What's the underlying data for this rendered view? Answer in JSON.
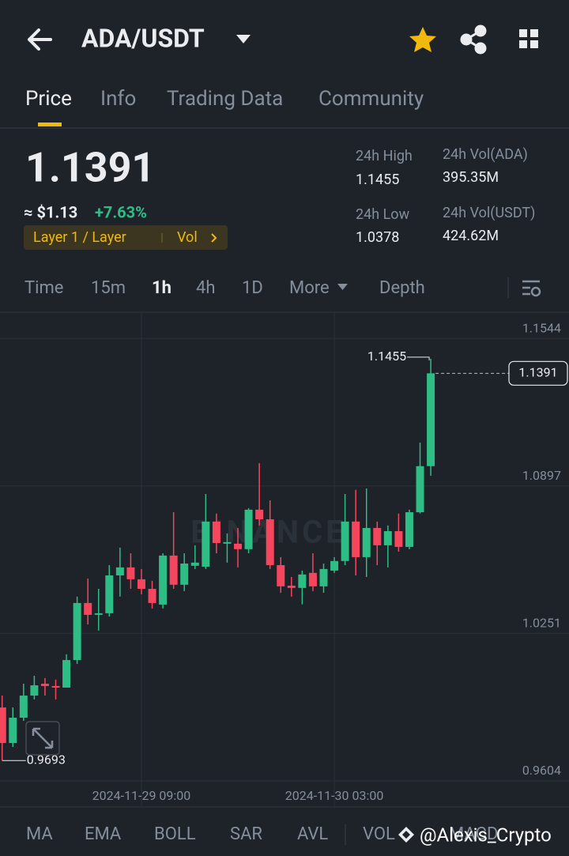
{
  "header": {
    "pair": "ADA/USDT"
  },
  "tabs": [
    "Price",
    "Info",
    "Trading Data",
    "Community"
  ],
  "price": {
    "last": "1.1391",
    "approx": "≈ $1.13",
    "change": "+7.63%",
    "tag": "Layer 1 / Layer",
    "tag_extra": "Vol"
  },
  "stats": [
    {
      "label": "24h High",
      "value": "1.1455"
    },
    {
      "label": "24h Vol(ADA)",
      "value": "395.35M"
    },
    {
      "label": "24h Low",
      "value": "1.0378"
    },
    {
      "label": "24h Vol(USDT)",
      "value": "424.62M"
    }
  ],
  "intervals": [
    "Time",
    "15m",
    "1h",
    "4h",
    "1D",
    "More",
    "Depth"
  ],
  "chart_data": {
    "type": "candlestick",
    "watermark": "BINANCE",
    "open": [
      0.9926,
      0.977,
      0.9881,
      0.9978,
      1.003,
      1.002,
      1.0013,
      1.0134,
      1.0384,
      1.0332,
      1.0339,
      1.0505,
      1.054,
      1.0488,
      1.0446,
      1.0377,
      1.0592,
      1.0464,
      1.0547,
      1.0543,
      1.0741,
      1.0644,
      1.0644,
      1.062,
      1.0793,
      1.0751,
      1.055,
      1.046,
      1.045,
      1.0516,
      1.0457,
      1.0526,
      1.0568,
      1.0741,
      1.0585,
      1.0713,
      1.0637,
      1.0699,
      1.063,
      1.0782,
      1.0984
    ],
    "high": [
      0.9978,
      0.9926,
      1.003,
      1.0065,
      1.0055,
      1.0048,
      1.0159,
      1.0412,
      1.0491,
      1.0446,
      1.055,
      1.0627,
      1.0602,
      1.0533,
      1.0481,
      1.0602,
      1.0782,
      1.0602,
      1.0637,
      1.0862,
      1.0776,
      1.0689,
      1.0713,
      1.08,
      1.0997,
      1.0834,
      1.0585,
      1.0498,
      1.0526,
      1.0602,
      1.0557,
      1.0585,
      1.0862,
      1.088,
      1.0886,
      1.0741,
      1.0724,
      1.0776,
      1.0793,
      1.1087,
      1.1455
    ],
    "low": [
      0.9693,
      0.9753,
      0.9867,
      0.9961,
      0.9978,
      0.9961,
      1.0013,
      1.0117,
      1.029,
      1.0263,
      1.0325,
      1.0412,
      1.0446,
      1.0422,
      1.036,
      1.036,
      1.0446,
      1.0436,
      1.0533,
      1.0533,
      1.0602,
      1.0561,
      1.054,
      1.0602,
      1.0724,
      1.0533,
      1.0429,
      1.0412,
      1.0378,
      1.0436,
      1.0429,
      1.0516,
      1.055,
      1.0505,
      1.0498,
      1.055,
      1.054,
      1.0609,
      1.062,
      1.0776,
      1.0942
    ],
    "close": [
      0.977,
      0.9881,
      0.9978,
      1.0023,
      1.002,
      1.0013,
      1.0134,
      1.0384,
      1.0332,
      1.0339,
      1.0505,
      1.054,
      1.0488,
      1.0446,
      1.0384,
      1.0592,
      1.0464,
      1.0557,
      1.0561,
      1.0741,
      1.0647,
      1.0651,
      1.062,
      1.0793,
      1.0751,
      1.055,
      1.0457,
      1.045,
      1.0509,
      1.0457,
      1.0533,
      1.0568,
      1.0741,
      1.0585,
      1.0713,
      1.0637,
      1.0699,
      1.063,
      1.0782,
      1.0984,
      1.1391
    ],
    "up_color": "#2ebd85",
    "down_color": "#f6465d",
    "xlim": [
      -0.2,
      52.9
    ],
    "xticks": [
      {
        "value": 13,
        "label": "2024-11-29 09:00"
      },
      {
        "value": 31,
        "label": "2024-11-30 03:00"
      }
    ],
    "ylim": [
      0.9493,
      1.1659
    ],
    "yticks": [
      0.9604,
      1.0251,
      1.0897,
      1.1544
    ],
    "grid": true
  },
  "indicators": [
    "MA",
    "EMA",
    "BOLL",
    "SAR",
    "AVL",
    "VOL",
    "MACD"
  ],
  "watermark": "@Alexis_Crypto"
}
